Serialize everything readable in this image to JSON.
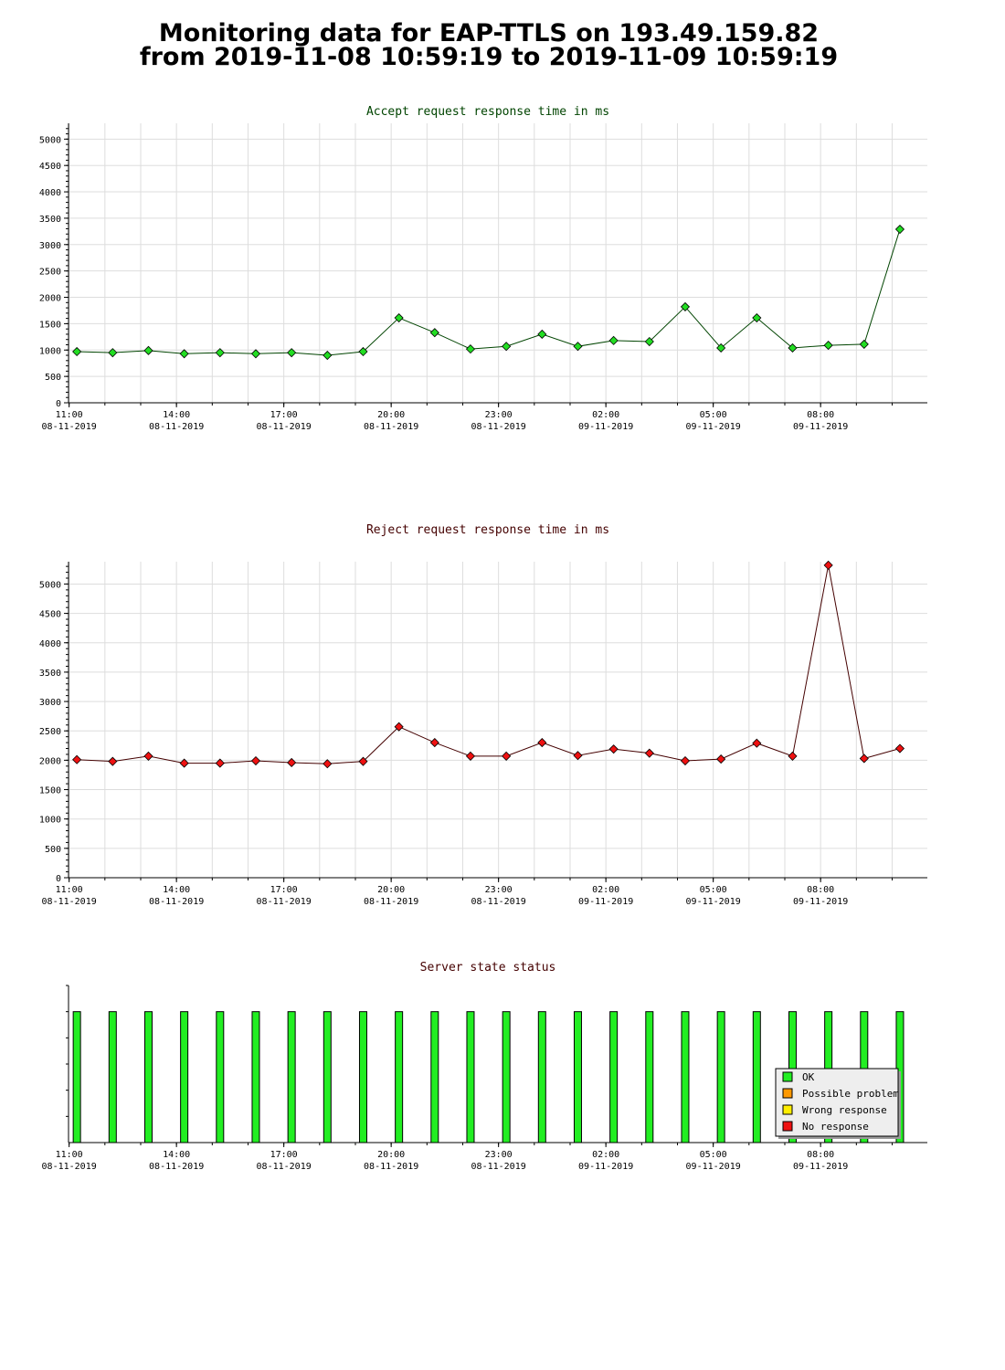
{
  "page": {
    "title_line1": "Monitoring data for EAP-TTLS on 193.49.159.82",
    "title_line2": "from 2019-11-08 10:59:19 to 2019-11-09 10:59:19"
  },
  "colors": {
    "accept_title": "#004400",
    "reject_title": "#440000",
    "status_title": "#440000",
    "accept_line": "#004400",
    "accept_marker": "#22dd22",
    "reject_line": "#440000",
    "reject_marker": "#ee1111",
    "ok": "#22ee22",
    "possible_problem": "#ff9900",
    "wrong_response": "#ffee00",
    "no_response": "#ee1111",
    "grid": "#dddddd"
  },
  "x_ticks": [
    {
      "time": "11:00",
      "date": "08-11-2019"
    },
    {
      "time": "14:00",
      "date": "08-11-2019"
    },
    {
      "time": "17:00",
      "date": "08-11-2019"
    },
    {
      "time": "20:00",
      "date": "08-11-2019"
    },
    {
      "time": "23:00",
      "date": "08-11-2019"
    },
    {
      "time": "02:00",
      "date": "09-11-2019"
    },
    {
      "time": "05:00",
      "date": "09-11-2019"
    },
    {
      "time": "08:00",
      "date": "09-11-2019"
    }
  ],
  "legend": [
    {
      "label": "OK",
      "color_key": "ok"
    },
    {
      "label": "Possible problem",
      "color_key": "possible_problem"
    },
    {
      "label": "Wrong response",
      "color_key": "wrong_response"
    },
    {
      "label": "No response",
      "color_key": "no_response"
    }
  ],
  "chart_data": [
    {
      "type": "line",
      "title": "Accept request response time in ms",
      "x_axis": "time",
      "x_range": [
        "2019-11-08 10:59",
        "2019-11-09 10:59"
      ],
      "x": [
        "2019-11-08 11:13",
        "2019-11-08 12:13",
        "2019-11-08 13:13",
        "2019-11-08 14:13",
        "2019-11-08 15:13",
        "2019-11-08 16:13",
        "2019-11-08 17:13",
        "2019-11-08 18:13",
        "2019-11-08 19:13",
        "2019-11-08 20:13",
        "2019-11-08 21:13",
        "2019-11-08 22:13",
        "2019-11-08 23:13",
        "2019-11-09 00:13",
        "2019-11-09 01:13",
        "2019-11-09 02:13",
        "2019-11-09 03:13",
        "2019-11-09 04:13",
        "2019-11-09 05:13",
        "2019-11-09 06:13",
        "2019-11-09 07:13",
        "2019-11-09 08:13",
        "2019-11-09 09:13",
        "2019-11-09 10:13"
      ],
      "values": [
        970,
        950,
        990,
        930,
        950,
        930,
        950,
        900,
        970,
        1610,
        1330,
        1020,
        1070,
        1300,
        1070,
        1180,
        1160,
        1820,
        1040,
        1610,
        1040,
        1090,
        1110,
        3290
      ],
      "ylim": [
        0,
        5300
      ],
      "y_ticks": [
        0,
        500,
        1000,
        1500,
        2000,
        2500,
        3000,
        3500,
        4000,
        4500,
        5000
      ],
      "grid": true
    },
    {
      "type": "line",
      "title": "Reject request response time in ms",
      "x_axis": "time",
      "x_range": [
        "2019-11-08 10:59",
        "2019-11-09 10:59"
      ],
      "x": [
        "2019-11-08 11:13",
        "2019-11-08 12:13",
        "2019-11-08 13:13",
        "2019-11-08 14:13",
        "2019-11-08 15:13",
        "2019-11-08 16:13",
        "2019-11-08 17:13",
        "2019-11-08 18:13",
        "2019-11-08 19:13",
        "2019-11-08 20:13",
        "2019-11-08 21:13",
        "2019-11-08 22:13",
        "2019-11-08 23:13",
        "2019-11-09 00:13",
        "2019-11-09 01:13",
        "2019-11-09 02:13",
        "2019-11-09 03:13",
        "2019-11-09 04:13",
        "2019-11-09 05:13",
        "2019-11-09 06:13",
        "2019-11-09 07:13",
        "2019-11-09 08:13",
        "2019-11-09 09:13",
        "2019-11-09 10:13"
      ],
      "values": [
        2010,
        1980,
        2070,
        1950,
        1950,
        1990,
        1960,
        1940,
        1980,
        2570,
        2300,
        2070,
        2070,
        2300,
        2080,
        2190,
        2120,
        1990,
        2020,
        2290,
        2070,
        5320,
        2030,
        2200
      ],
      "ylim": [
        0,
        5380
      ],
      "y_ticks": [
        0,
        500,
        1000,
        1500,
        2000,
        2500,
        3000,
        3500,
        4000,
        4500,
        5000
      ],
      "grid": true
    },
    {
      "type": "bar",
      "title": "Server state status",
      "x_axis": "time",
      "x_range": [
        "2019-11-08 10:59",
        "2019-11-09 10:59"
      ],
      "x": [
        "2019-11-08 11:13",
        "2019-11-08 12:13",
        "2019-11-08 13:13",
        "2019-11-08 14:13",
        "2019-11-08 15:13",
        "2019-11-08 16:13",
        "2019-11-08 17:13",
        "2019-11-08 18:13",
        "2019-11-08 19:13",
        "2019-11-08 20:13",
        "2019-11-08 21:13",
        "2019-11-08 22:13",
        "2019-11-08 23:13",
        "2019-11-09 00:13",
        "2019-11-09 01:13",
        "2019-11-09 02:13",
        "2019-11-09 03:13",
        "2019-11-09 04:13",
        "2019-11-09 05:13",
        "2019-11-09 06:13",
        "2019-11-09 07:13",
        "2019-11-09 08:13",
        "2019-11-09 09:13",
        "2019-11-09 10:13"
      ],
      "status": [
        "OK",
        "OK",
        "OK",
        "OK",
        "OK",
        "OK",
        "OK",
        "OK",
        "OK",
        "OK",
        "OK",
        "OK",
        "OK",
        "OK",
        "OK",
        "OK",
        "OK",
        "OK",
        "OK",
        "OK",
        "OK",
        "OK",
        "OK",
        "OK"
      ],
      "values": [
        1,
        1,
        1,
        1,
        1,
        1,
        1,
        1,
        1,
        1,
        1,
        1,
        1,
        1,
        1,
        1,
        1,
        1,
        1,
        1,
        1,
        1,
        1,
        1
      ],
      "ylim": [
        0,
        1.2
      ],
      "legend_position": "bottom-right",
      "grid": false
    }
  ]
}
